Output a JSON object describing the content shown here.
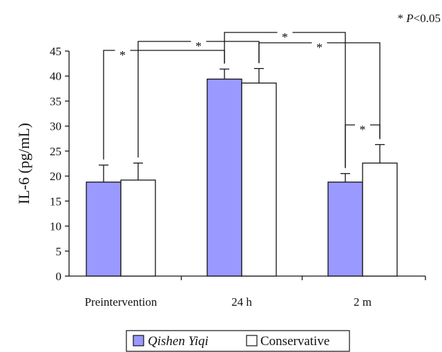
{
  "chart_data": {
    "type": "bar",
    "ylabel": "IL-6 (pg/mL)",
    "ylim": [
      0,
      45
    ],
    "yticks": [
      0,
      5,
      10,
      15,
      20,
      25,
      30,
      35,
      40,
      45
    ],
    "categories": [
      "Preintervention",
      "24 h",
      "2 m"
    ],
    "series": [
      {
        "name": "Qishen Yiqi",
        "values": [
          18.8,
          39.4,
          18.8
        ],
        "errors": [
          3.4,
          2.0,
          1.7
        ],
        "color": "#9999ff"
      },
      {
        "name": "Conservative",
        "values": [
          19.2,
          38.6,
          22.6
        ],
        "errors": [
          3.4,
          2.9,
          3.7
        ],
        "color": "#ffffff"
      }
    ],
    "significance_marker": "*",
    "significance_note": "* P<0.05",
    "comparisons": [
      {
        "from": "Preintervention / Qishen Yiqi",
        "to": "24 h / Qishen Yiqi"
      },
      {
        "from": "Preintervention / Conservative",
        "to": "24 h / Conservative"
      },
      {
        "from": "24 h / Qishen Yiqi",
        "to": "2 m / Qishen Yiqi"
      },
      {
        "from": "24 h / Conservative",
        "to": "2 m / Conservative"
      },
      {
        "from": "2 m / Qishen Yiqi",
        "to": "2 m / Conservative"
      }
    ],
    "legend_position": "bottom",
    "grid": false
  }
}
